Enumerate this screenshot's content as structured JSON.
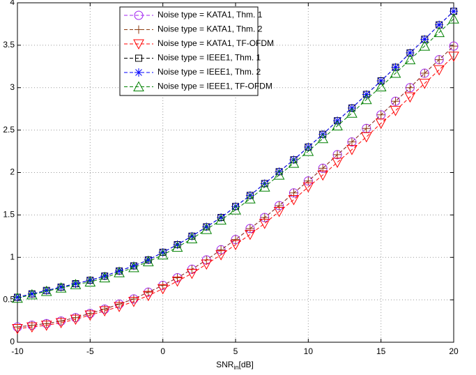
{
  "chart_data": {
    "type": "line",
    "x_label": "SNR",
    "x_label_sub": "in",
    "x_label_suffix": "[dB]",
    "x": [
      -10,
      -9,
      -8,
      -7,
      -6,
      -5,
      -4,
      -3,
      -2,
      -1,
      0,
      1,
      2,
      3,
      4,
      5,
      6,
      7,
      8,
      9,
      10,
      11,
      12,
      13,
      14,
      15,
      16,
      17,
      18,
      19,
      20
    ],
    "xlim": [
      -10,
      20
    ],
    "xticks": [
      -10,
      -5,
      0,
      5,
      10,
      15,
      20
    ],
    "ylim": [
      0,
      4
    ],
    "yticks": [
      0,
      0.5,
      1,
      1.5,
      2,
      2.5,
      3,
      3.5,
      4
    ],
    "grid": true,
    "legend": "top-center",
    "series": [
      {
        "name": "Noise type = KATA1, Thm. 1",
        "color": "#a020f0",
        "marker": "circle",
        "values": [
          0.18,
          0.2,
          0.22,
          0.25,
          0.29,
          0.34,
          0.39,
          0.45,
          0.51,
          0.59,
          0.67,
          0.76,
          0.86,
          0.97,
          1.09,
          1.21,
          1.34,
          1.47,
          1.61,
          1.76,
          1.9,
          2.05,
          2.21,
          2.36,
          2.52,
          2.68,
          2.84,
          3.0,
          3.17,
          3.33,
          3.49
        ]
      },
      {
        "name": "Noise type = KATA1, Thm. 2",
        "color": "#8b3a0f",
        "marker": "plus",
        "values": [
          0.18,
          0.2,
          0.22,
          0.25,
          0.29,
          0.34,
          0.39,
          0.45,
          0.51,
          0.59,
          0.67,
          0.76,
          0.86,
          0.97,
          1.09,
          1.21,
          1.34,
          1.47,
          1.61,
          1.76,
          1.9,
          2.05,
          2.21,
          2.36,
          2.52,
          2.68,
          2.84,
          3.0,
          3.17,
          3.33,
          3.49
        ]
      },
      {
        "name": "Noise type = KATA1, TF-OFDM",
        "color": "#ff0000",
        "marker": "triangle-down",
        "values": [
          0.16,
          0.18,
          0.2,
          0.23,
          0.27,
          0.32,
          0.37,
          0.42,
          0.48,
          0.55,
          0.63,
          0.72,
          0.81,
          0.92,
          1.03,
          1.15,
          1.27,
          1.4,
          1.54,
          1.68,
          1.83,
          1.97,
          2.12,
          2.27,
          2.42,
          2.58,
          2.73,
          2.89,
          3.05,
          3.21,
          3.37
        ]
      },
      {
        "name": "Noise type = IEEE1, Thm. 1",
        "color": "#000000",
        "marker": "square",
        "values": [
          0.53,
          0.57,
          0.61,
          0.65,
          0.69,
          0.73,
          0.78,
          0.84,
          0.9,
          0.97,
          1.06,
          1.15,
          1.25,
          1.36,
          1.47,
          1.6,
          1.73,
          1.87,
          2.01,
          2.15,
          2.3,
          2.45,
          2.61,
          2.76,
          2.92,
          3.08,
          3.24,
          3.41,
          3.57,
          3.74,
          3.9
        ]
      },
      {
        "name": "Noise type = IEEE1, Thm. 2",
        "color": "#0000ff",
        "marker": "asterisk",
        "values": [
          0.53,
          0.57,
          0.61,
          0.65,
          0.69,
          0.73,
          0.78,
          0.84,
          0.9,
          0.97,
          1.06,
          1.15,
          1.25,
          1.36,
          1.47,
          1.6,
          1.73,
          1.87,
          2.01,
          2.15,
          2.3,
          2.45,
          2.61,
          2.76,
          2.92,
          3.08,
          3.24,
          3.41,
          3.57,
          3.74,
          3.9
        ]
      },
      {
        "name": "Noise type = IEEE1, TF-OFDM",
        "color": "#008000",
        "marker": "triangle-up",
        "values": [
          0.52,
          0.56,
          0.6,
          0.64,
          0.68,
          0.71,
          0.76,
          0.82,
          0.88,
          0.95,
          1.03,
          1.12,
          1.22,
          1.33,
          1.44,
          1.56,
          1.69,
          1.83,
          1.97,
          2.11,
          2.25,
          2.4,
          2.55,
          2.7,
          2.86,
          3.01,
          3.17,
          3.33,
          3.49,
          3.65,
          3.81
        ]
      }
    ]
  }
}
